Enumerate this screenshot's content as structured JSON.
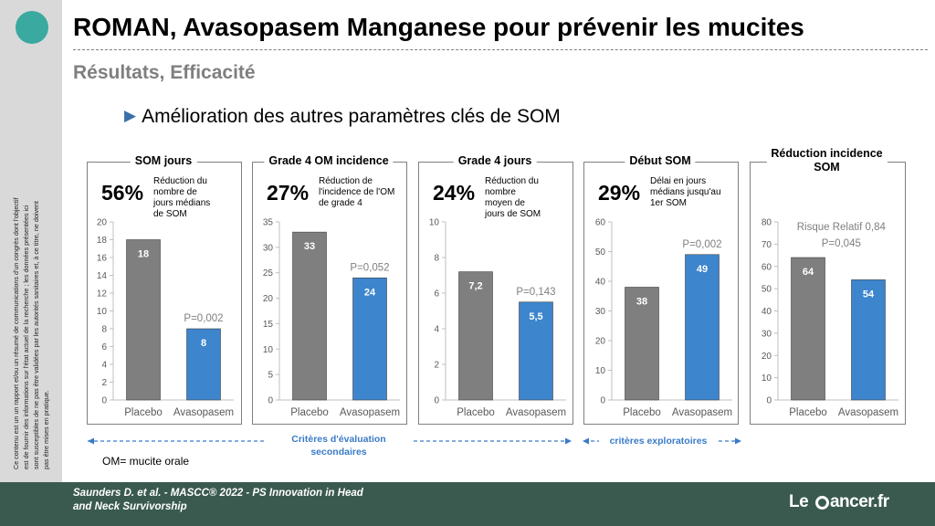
{
  "header": {
    "title": "ROMAN, Avasopasem Manganese pour prévenir les mucites",
    "subtitle": "Résultats, Efficacité",
    "bullet": "Amélioration des autres paramètres clés de SOM"
  },
  "sidebar": {
    "disclaimer": "Ce contenu est un un rapport et/ou un résumé de communications d'un congrès dont l'objectif est de fournir des informations sur l'état actuel de la recherche ; les données présentées ici sont susceptibles de ne pas être validées par les autorités sanitaires et, à ce titre, ne doivent pas être mises en pratique."
  },
  "panels": [
    {
      "title_lines": [
        "SOM jours"
      ],
      "pct": "56%",
      "desc_lines": [
        "Réduction du",
        "nombre de",
        "jours médians",
        "de SOM"
      ]
    },
    {
      "title_lines": [
        "Grade 4 OM incidence"
      ],
      "pct": "27%",
      "desc_lines": [
        "Réduction de",
        "l'incidence de l'OM",
        "de grade 4"
      ]
    },
    {
      "title_lines": [
        "Grade 4 jours"
      ],
      "pct": "24%",
      "desc_lines": [
        "Réduction du",
        "nombre",
        "moyen de",
        "jours de SOM"
      ]
    },
    {
      "title_lines": [
        "Début SOM"
      ],
      "pct": "29%",
      "desc_lines": [
        "Délai en jours",
        "médians jusqu'au",
        "1er SOM"
      ]
    },
    {
      "title_lines": [
        "Réduction incidence",
        "SOM"
      ],
      "pct": "",
      "desc_lines": []
    }
  ],
  "chart_data": [
    {
      "type": "bar",
      "categories": [
        "Placebo",
        "Avasopasem"
      ],
      "values": [
        18,
        8
      ],
      "value_labels": [
        "18",
        "8"
      ],
      "ylim": [
        0,
        20
      ],
      "yticks": [
        0,
        2,
        4,
        6,
        8,
        10,
        12,
        14,
        16,
        18,
        20
      ],
      "annotations": [
        "P=0,002"
      ],
      "colors": [
        "#7f7f7f",
        "#3d85cc"
      ]
    },
    {
      "type": "bar",
      "categories": [
        "Placebo",
        "Avasopasem"
      ],
      "values": [
        33,
        24
      ],
      "value_labels": [
        "33",
        "24"
      ],
      "ylim": [
        0,
        35
      ],
      "yticks": [
        0,
        5,
        10,
        15,
        20,
        25,
        30,
        35
      ],
      "annotations": [
        "P=0,052"
      ],
      "colors": [
        "#7f7f7f",
        "#3d85cc"
      ]
    },
    {
      "type": "bar",
      "categories": [
        "Placebo",
        "Avasopasem"
      ],
      "values": [
        7.2,
        5.5
      ],
      "value_labels": [
        "7,2",
        "5,5"
      ],
      "ylim": [
        0,
        10
      ],
      "yticks": [
        0,
        2,
        4,
        6,
        8,
        10
      ],
      "annotations": [
        "P=0,143"
      ],
      "colors": [
        "#7f7f7f",
        "#3d85cc"
      ]
    },
    {
      "type": "bar",
      "categories": [
        "Placebo",
        "Avasopasem"
      ],
      "values": [
        38,
        49
      ],
      "value_labels": [
        "38",
        "49"
      ],
      "ylim": [
        0,
        60
      ],
      "yticks": [
        0,
        10,
        20,
        30,
        40,
        50,
        60
      ],
      "annotations": [
        "P=0,002"
      ],
      "colors": [
        "#7f7f7f",
        "#3d85cc"
      ]
    },
    {
      "type": "bar",
      "categories": [
        "Placebo",
        "Avasopasem"
      ],
      "values": [
        64,
        54
      ],
      "value_labels": [
        "64",
        "54"
      ],
      "ylim": [
        0,
        80
      ],
      "yticks": [
        0,
        10,
        20,
        30,
        40,
        50,
        60,
        70,
        80
      ],
      "annotations": [
        "Risque Relatif 0,84",
        "P=0,045"
      ],
      "colors": [
        "#7f7f7f",
        "#3d85cc"
      ]
    }
  ],
  "brackets": {
    "secondary": [
      "Critères d'évaluation",
      "secondaires"
    ],
    "exploratory": "critères exploratoires"
  },
  "om_note": "OM= mucite orale",
  "footer": {
    "citation_lines": [
      "Saunders D. et al. - MASCC® 2022 - PS Innovation in Head",
      "and Neck Survivorship"
    ],
    "logo_pre": "Le ",
    "logo_post": "ancer.fr"
  }
}
